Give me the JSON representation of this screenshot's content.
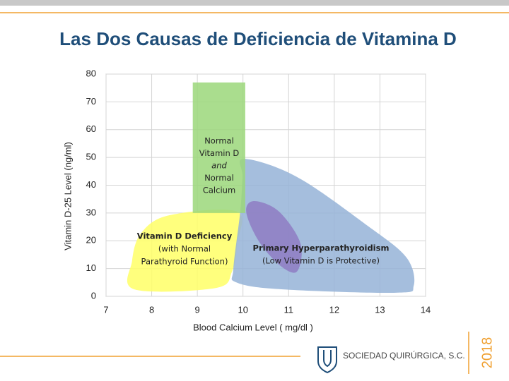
{
  "title": "Las Dos Causas de Deficiencia de Vitamina D",
  "footer": {
    "organization": "SOCIEDAD QUIRÚRGICA, S.C.",
    "year": "2018"
  },
  "chart_data": {
    "type": "region",
    "x_label": "Blood Calcium Level   ( mg/dl )",
    "y_label": "Vitamin D-25 Level   (ng/ml)",
    "xlim": [
      7,
      14
    ],
    "xticks": [
      7,
      8,
      9,
      10,
      11,
      12,
      13,
      14
    ],
    "ylim": [
      0,
      80
    ],
    "yticks": [
      0,
      10,
      20,
      30,
      40,
      50,
      60,
      70,
      80
    ],
    "grid": true,
    "series": [
      {
        "color": "#ffff66",
        "shape": "smooth",
        "x": [
          7.62,
          7.57,
          7.77,
          8.39,
          9.87,
          9.87,
          9.76,
          9.4
        ],
        "values": [
          2.5,
          12.7,
          22.8,
          29.2,
          30.5,
          19,
          8.9,
          3
        ]
      },
      {
        "color": "#95b3d7",
        "shape": "smooth",
        "x": [
          10.02,
          11.18,
          12.73,
          13.58,
          13.74,
          13.35,
          10.87,
          9.86,
          9.79,
          9.94,
          9.99
        ],
        "values": [
          49.5,
          43,
          25.4,
          14,
          3.8,
          1.3,
          2.5,
          5,
          10,
          30.5,
          43
        ]
      },
      {
        "color": "#8e7cc3",
        "shape": "smooth",
        "x": [
          10.25,
          10.79,
          11.26,
          11.18,
          10.79,
          10.33,
          10.07
        ],
        "values": [
          34.3,
          30.5,
          19,
          8.9,
          11.4,
          20.3,
          30.5
        ]
      },
      {
        "color": "#9bd77a",
        "shape": "polygon",
        "x": [
          8.9,
          10.05,
          10.05,
          8.9
        ],
        "values": [
          30,
          30,
          77,
          77
        ]
      }
    ],
    "annotations": [
      {
        "lines": [
          "Normal",
          "Vitamin D",
          "and",
          "Normal",
          "Calcium"
        ]
      },
      {
        "lines": [
          "Vitamin D Deficiency",
          "(with Normal",
          "Parathyroid Function)"
        ]
      },
      {
        "lines": [
          "Primary Hyperparathyroidism",
          "(Low Vitamin D is Protective)"
        ]
      }
    ]
  }
}
